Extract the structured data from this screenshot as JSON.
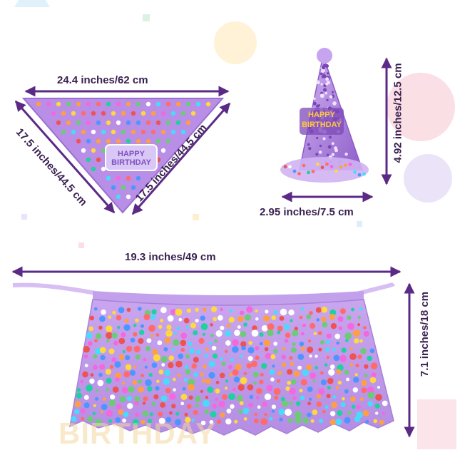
{
  "colors": {
    "arrow": "#5b2a86",
    "label": "#3a2150",
    "lavender": "#b98ee6",
    "lavender_dark": "#9a6fd0",
    "lavender_light": "#d6bdf2",
    "badge_text": "#ffc93c"
  },
  "bandana": {
    "width_label": "24.4 inches/62 cm",
    "left_side_label": "17.5 inches/44.5 cm",
    "right_side_label": "17.5 inches/44.5 cm",
    "badge_text": "HAPPY BIRTHDAY"
  },
  "hat": {
    "width_label": "2.95 inches/7.5 cm",
    "height_label": "4.92 inches/12.5 cm",
    "badge_line1": "HAPPY",
    "badge_line2": "BIRTHDAY"
  },
  "tutu": {
    "width_label": "19.3 inches/49 cm",
    "height_label": "7.1 inches/18 cm"
  },
  "background": {
    "watermark_text": "BIRTHDAY"
  }
}
